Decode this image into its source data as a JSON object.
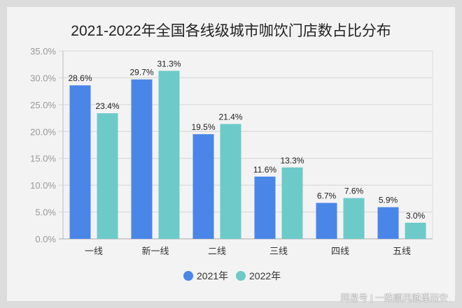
{
  "chart_data": {
    "type": "bar",
    "title": "2021-2022年全国各线级城市咖饮门店数占比分布",
    "categories": [
      "一线",
      "新一线",
      "二线",
      "三线",
      "四线",
      "五线"
    ],
    "series": [
      {
        "name": "2021年",
        "color": "#4a86e8",
        "values": [
          28.6,
          29.7,
          19.5,
          11.6,
          6.7,
          5.9
        ]
      },
      {
        "name": "2022年",
        "color": "#6ccbc8",
        "values": [
          23.4,
          31.3,
          21.4,
          13.3,
          7.6,
          3.0
        ]
      }
    ],
    "ylim": [
      0,
      35
    ],
    "yticks": [
      0,
      5,
      10,
      15,
      20,
      25,
      30,
      35
    ],
    "tick_format": "percent-1dp",
    "grid": true,
    "legend": "bottom",
    "xlabel": "",
    "ylabel": ""
  },
  "watermark": "网易号 | 一路顺风随遇而安"
}
